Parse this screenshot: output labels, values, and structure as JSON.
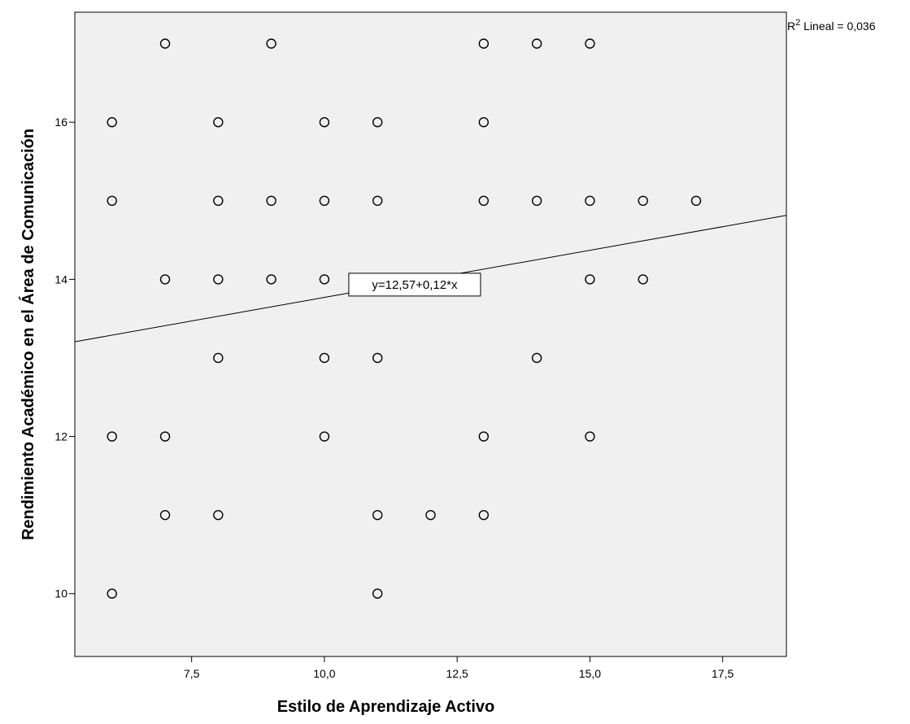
{
  "chart_data": {
    "type": "scatter",
    "title": "",
    "xlabel": "Estilo de Aprendizaje Activo",
    "ylabel": "Rendimiento Académico en el Área de Comunicación",
    "xlim": [
      5.3,
      18.7
    ],
    "ylim": [
      9.2,
      17.4
    ],
    "x_ticks": [
      7.5,
      10.0,
      12.5,
      15.0,
      17.5
    ],
    "x_tick_labels": [
      "7,5",
      "10,0",
      "12,5",
      "15,0",
      "17,5"
    ],
    "y_ticks": [
      10,
      12,
      14,
      16
    ],
    "y_tick_labels": [
      "10",
      "12",
      "14",
      "16"
    ],
    "grid": false,
    "background_color": "#f0f0f0",
    "marker_color": "#000000",
    "points": [
      {
        "x": 7,
        "y": 17
      },
      {
        "x": 9,
        "y": 17
      },
      {
        "x": 13,
        "y": 17
      },
      {
        "x": 14,
        "y": 17
      },
      {
        "x": 15,
        "y": 17
      },
      {
        "x": 6,
        "y": 16
      },
      {
        "x": 8,
        "y": 16
      },
      {
        "x": 10,
        "y": 16
      },
      {
        "x": 11,
        "y": 16
      },
      {
        "x": 13,
        "y": 16
      },
      {
        "x": 6,
        "y": 15
      },
      {
        "x": 8,
        "y": 15
      },
      {
        "x": 9,
        "y": 15
      },
      {
        "x": 10,
        "y": 15
      },
      {
        "x": 11,
        "y": 15
      },
      {
        "x": 13,
        "y": 15
      },
      {
        "x": 14,
        "y": 15
      },
      {
        "x": 15,
        "y": 15
      },
      {
        "x": 16,
        "y": 15
      },
      {
        "x": 17,
        "y": 15
      },
      {
        "x": 7,
        "y": 14
      },
      {
        "x": 8,
        "y": 14
      },
      {
        "x": 9,
        "y": 14
      },
      {
        "x": 10,
        "y": 14
      },
      {
        "x": 15,
        "y": 14
      },
      {
        "x": 16,
        "y": 14
      },
      {
        "x": 8,
        "y": 13
      },
      {
        "x": 10,
        "y": 13
      },
      {
        "x": 11,
        "y": 13
      },
      {
        "x": 14,
        "y": 13
      },
      {
        "x": 6,
        "y": 12
      },
      {
        "x": 7,
        "y": 12
      },
      {
        "x": 10,
        "y": 12
      },
      {
        "x": 13,
        "y": 12
      },
      {
        "x": 15,
        "y": 12
      },
      {
        "x": 7,
        "y": 11
      },
      {
        "x": 8,
        "y": 11
      },
      {
        "x": 11,
        "y": 11
      },
      {
        "x": 12,
        "y": 11
      },
      {
        "x": 13,
        "y": 11
      },
      {
        "x": 6,
        "y": 10
      },
      {
        "x": 11,
        "y": 10
      }
    ],
    "fit_line": {
      "intercept": 12.57,
      "slope": 0.12
    },
    "fit_label": "y=12,57+0,12*x",
    "r2_prefix": "R",
    "r2_superscript": "2",
    "r2_suffix": " Lineal = 0,036"
  }
}
